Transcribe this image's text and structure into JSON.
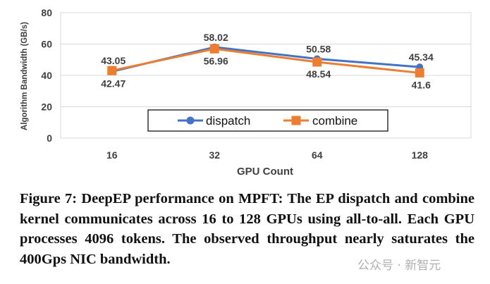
{
  "chart_data": {
    "type": "line",
    "categories": [
      "16",
      "32",
      "64",
      "128"
    ],
    "xlabel": "GPU Count",
    "ylabel": "Algorithm Bandwidth (GB/s)",
    "ylim": [
      0,
      80
    ],
    "yticks": [
      "0",
      "20",
      "40",
      "60",
      "80"
    ],
    "grid": true,
    "legend_position": "bottom-center",
    "series": [
      {
        "name": "dispatch",
        "values": [
          42.47,
          58.02,
          50.58,
          45.34
        ],
        "labels": [
          "42.47",
          "58.02",
          "50.58",
          "45.34"
        ],
        "color": "#4472C4",
        "marker": "circle"
      },
      {
        "name": "combine",
        "values": [
          43.05,
          56.96,
          48.54,
          41.6
        ],
        "labels": [
          "43.05",
          "56.96",
          "48.54",
          "41.6"
        ],
        "color": "#ED7D31",
        "marker": "square"
      }
    ]
  },
  "caption": "Figure 7: DeepEP performance on MPFT: The EP dispatch and combine kernel communicates across 16 to 128 GPUs using all-to-all. Each GPU processes 4096 tokens. The observed throughput nearly saturates the 400Gps NIC bandwidth.",
  "watermark": "公众号 · 新智元"
}
